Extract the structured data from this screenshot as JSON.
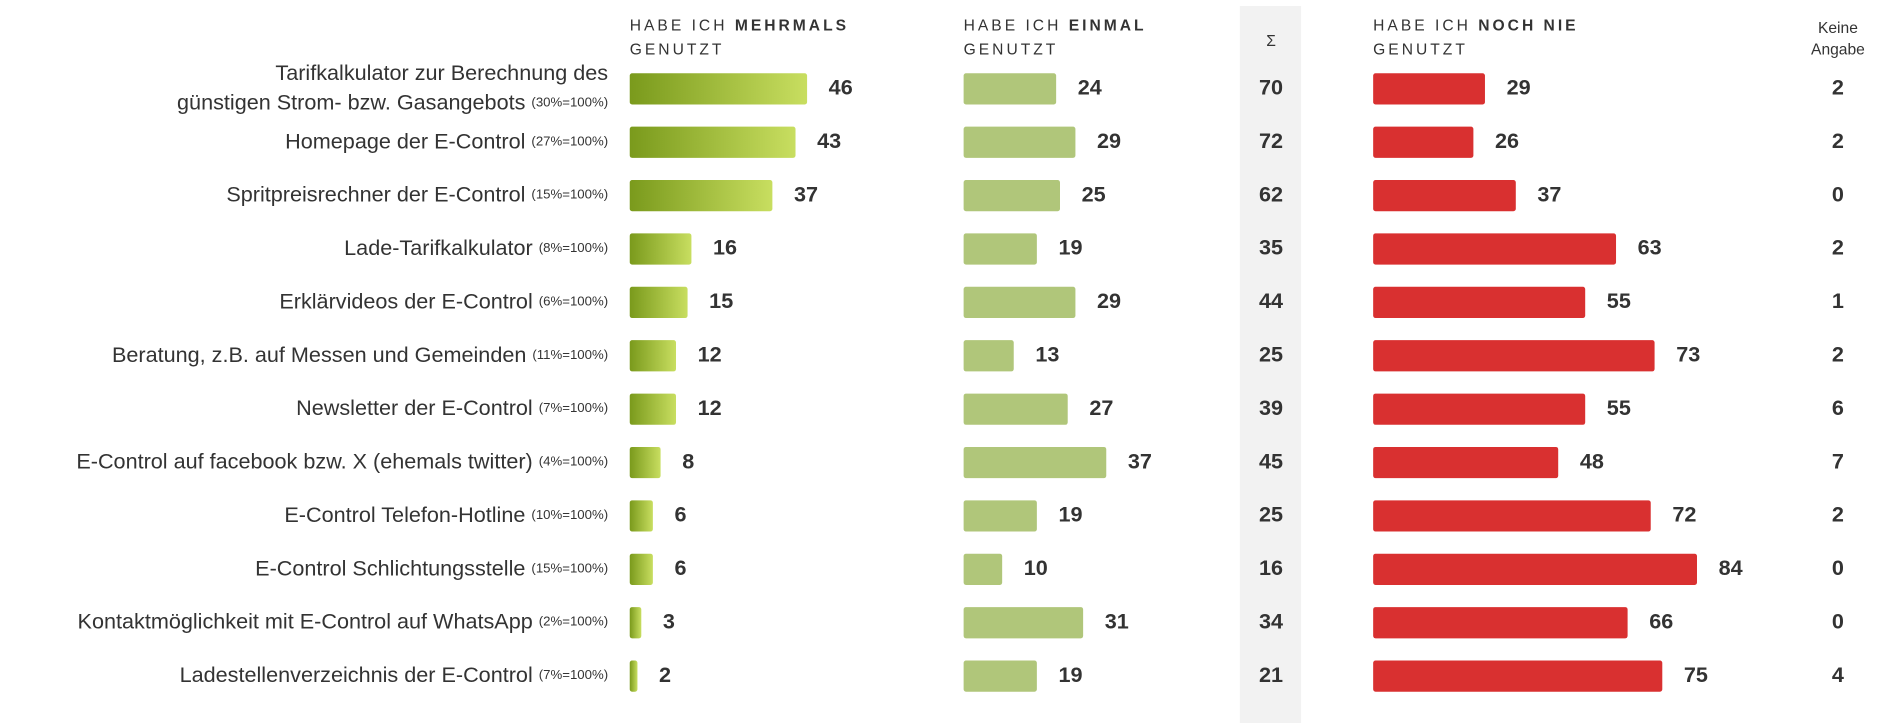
{
  "chart_data": {
    "type": "bar",
    "categories": [
      [
        "Tarifkalkulator zur Berechnung des",
        "günstigen Strom- bzw. Gasangebots"
      ],
      [
        "Homepage der E-Control"
      ],
      [
        "Spritpreisrechner der E-Control"
      ],
      [
        "Lade-Tarifkalkulator"
      ],
      [
        "Erklärvideos der E-Control"
      ],
      [
        "Beratung, z.B. auf Messen und Gemeinden"
      ],
      [
        "Newsletter der E-Control"
      ],
      [
        "E-Control auf facebook bzw. X (ehemals twitter)"
      ],
      [
        "E-Control Telefon-Hotline"
      ],
      [
        "E-Control Schlichtungsstelle"
      ],
      [
        "Kontaktmöglichkeit mit E-Control auf WhatsApp"
      ],
      [
        "Ladestellenverzeichnis der E-Control"
      ]
    ],
    "bases": [
      "(30%=100%)",
      "(27%=100%)",
      "(15%=100%)",
      "(8%=100%)",
      "(6%=100%)",
      "(11%=100%)",
      "(7%=100%)",
      "(4%=100%)",
      "(10%=100%)",
      "(15%=100%)",
      "(2%=100%)",
      "(7%=100%)"
    ],
    "series": [
      {
        "name_prefix": "HABE ICH",
        "name_emphasis": "MEHRMALS",
        "name_suffix": "GENUTZT",
        "gradient": [
          "#7a9a1c",
          "#c8de60"
        ],
        "values": [
          46,
          43,
          37,
          16,
          15,
          12,
          12,
          8,
          6,
          6,
          3,
          2
        ]
      },
      {
        "name_prefix": "HABE ICH",
        "name_emphasis": "EINMAL",
        "name_suffix": "GENUTZT",
        "color": "#b0c67a",
        "values": [
          24,
          29,
          25,
          19,
          29,
          13,
          27,
          37,
          19,
          10,
          31,
          19
        ]
      },
      {
        "name_prefix": "HABE ICH",
        "name_emphasis": "NOCH NIE",
        "name_suffix": "GENUTZT",
        "color": "#d93030",
        "values": [
          29,
          26,
          37,
          63,
          55,
          73,
          55,
          48,
          72,
          84,
          66,
          75
        ]
      }
    ],
    "sum_label": "Σ",
    "sums": [
      70,
      72,
      62,
      35,
      44,
      25,
      39,
      45,
      25,
      16,
      34,
      21
    ],
    "no_answer_label": [
      "Keine",
      "Angabe"
    ],
    "no_answer": [
      2,
      2,
      0,
      2,
      1,
      2,
      6,
      7,
      2,
      0,
      0,
      4
    ]
  }
}
